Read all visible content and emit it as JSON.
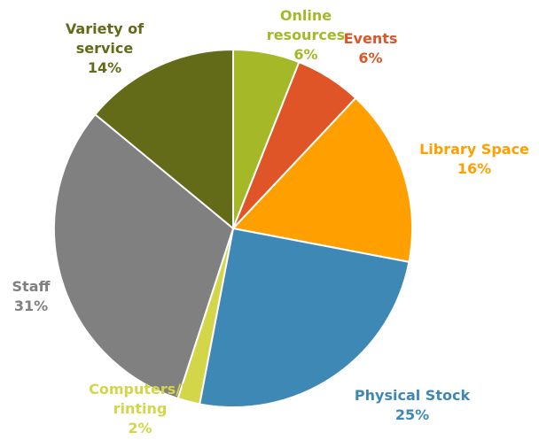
{
  "chart_data": {
    "type": "pie",
    "categories": [
      "Online resources",
      "Events",
      "Library Space",
      "Physical Stock",
      "Computers/Printing",
      "Staff",
      "Variety of service"
    ],
    "values": [
      6,
      6,
      16,
      25,
      2,
      31,
      14
    ],
    "value_labels": [
      "6%",
      "6%",
      "16%",
      "25%",
      "2%",
      "31%",
      "14%"
    ],
    "colors": [
      "#a5b928",
      "#e05527",
      "#ffa000",
      "#3e88b5",
      "#d4d64a",
      "#808080",
      "#636b19"
    ]
  }
}
